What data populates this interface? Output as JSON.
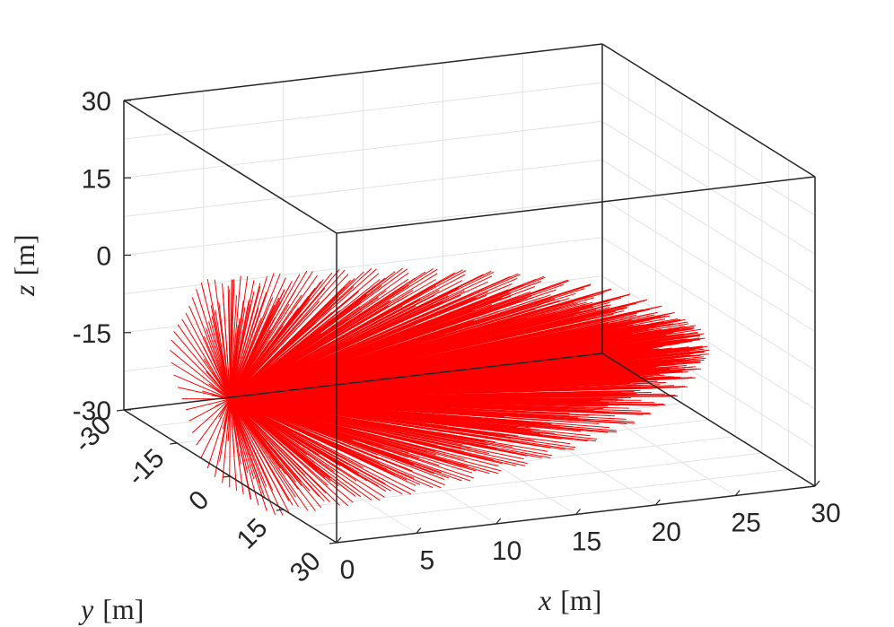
{
  "chart_data": {
    "type": "3d-line",
    "xlabel": {
      "var": "x",
      "unit": "[m]"
    },
    "ylabel": {
      "var": "y",
      "unit": "[m]"
    },
    "zlabel": {
      "var": "z",
      "unit": "[m]"
    },
    "xlim": [
      0,
      30
    ],
    "ylim": [
      -30,
      30
    ],
    "zlim": [
      -30,
      30
    ],
    "x_ticks": [
      0,
      5,
      10,
      15,
      20,
      25,
      30
    ],
    "y_ticks": [
      -30,
      -15,
      0,
      15,
      30
    ],
    "z_ticks": [
      -30,
      -15,
      0,
      15,
      30
    ],
    "x_tick_labels": [
      "0",
      "5",
      "10",
      "15",
      "20",
      "25",
      "30"
    ],
    "y_tick_labels": [
      "-30",
      "-15",
      "0",
      "15",
      "30"
    ],
    "z_tick_labels": [
      "-30",
      "-15",
      "0",
      "15",
      "30"
    ],
    "grid": true,
    "box": true,
    "color": "#ff0000",
    "origin": {
      "x": 0,
      "y": 0,
      "z": -15
    },
    "rays_description": "fan of red line segments emanating from origin point (0,0,-15), lengths up to ~28 m forming an ellipsoidal envelope",
    "max_reach_x": 28,
    "envelope_radius_yz": 20
  }
}
